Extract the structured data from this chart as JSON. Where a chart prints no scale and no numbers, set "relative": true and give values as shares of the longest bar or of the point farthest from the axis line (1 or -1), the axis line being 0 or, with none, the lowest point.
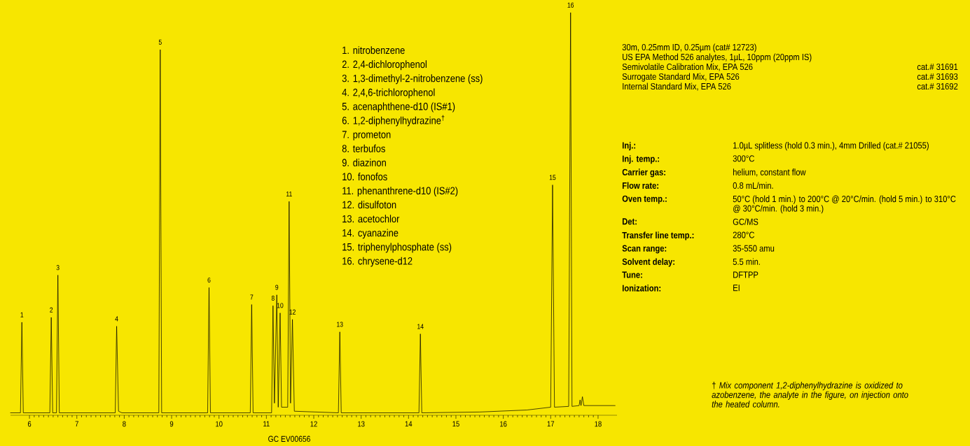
{
  "chart_data": {
    "type": "line",
    "relative": true,
    "color": "#000000",
    "xlim": [
      5.6,
      18.4
    ],
    "xticks": [
      6,
      7,
      8,
      9,
      10,
      11,
      12,
      13,
      14,
      15,
      16,
      17,
      18
    ],
    "x": [
      5.6,
      5.81,
      5.84,
      5.87,
      6.43,
      6.46,
      6.49,
      6.57,
      6.6,
      6.63,
      7.81,
      7.84,
      7.88,
      7.95,
      8.73,
      8.76,
      8.79,
      9.76,
      9.79,
      9.82,
      10.66,
      10.69,
      10.72,
      11.11,
      11.14,
      11.17,
      11.22,
      11.25,
      11.29,
      11.32,
      11.45,
      11.48,
      11.51,
      11.55,
      11.59,
      12.52,
      12.55,
      12.58,
      14.22,
      14.25,
      14.28,
      15.5,
      16.5,
      17.0,
      17.04,
      17.08,
      17.38,
      17.42,
      17.45,
      17.6,
      17.62,
      17.64,
      17.67,
      17.7,
      18.36
    ],
    "values": [
      0.006,
      0.006,
      0.231,
      0.006,
      0.006,
      0.243,
      0.006,
      0.006,
      0.348,
      0.006,
      0.006,
      0.221,
      0.01,
      0.006,
      0.006,
      0.908,
      0.006,
      0.006,
      0.317,
      0.006,
      0.006,
      0.275,
      0.006,
      0.006,
      0.272,
      0.03,
      0.299,
      0.02,
      0.254,
      0.02,
      0.02,
      0.531,
      0.03,
      0.238,
      0.01,
      0.006,
      0.207,
      0.006,
      0.006,
      0.202,
      0.006,
      0.008,
      0.013,
      0.02,
      0.572,
      0.02,
      0.022,
      1.0,
      0.022,
      0.024,
      0.038,
      0.024,
      0.046,
      0.024,
      0.024
    ],
    "annotations": [
      {
        "text": "1",
        "x": 5.84,
        "y": 0.231
      },
      {
        "text": "2",
        "x": 6.46,
        "y": 0.243
      },
      {
        "text": "3",
        "x": 6.6,
        "y": 0.348
      },
      {
        "text": "4",
        "x": 7.84,
        "y": 0.221
      },
      {
        "text": "5",
        "x": 8.76,
        "y": 0.908
      },
      {
        "text": "6",
        "x": 9.79,
        "y": 0.317
      },
      {
        "text": "7",
        "x": 10.69,
        "y": 0.275
      },
      {
        "text": "8",
        "x": 11.14,
        "y": 0.272
      },
      {
        "text": "9",
        "x": 11.22,
        "y": 0.299
      },
      {
        "text": "10",
        "x": 11.29,
        "y": 0.254
      },
      {
        "text": "11",
        "x": 11.48,
        "y": 0.531
      },
      {
        "text": "12",
        "x": 11.55,
        "y": 0.238
      },
      {
        "text": "13",
        "x": 12.55,
        "y": 0.207
      },
      {
        "text": "14",
        "x": 14.25,
        "y": 0.202
      },
      {
        "text": "15",
        "x": 17.04,
        "y": 0.572
      },
      {
        "text": "16",
        "x": 17.42,
        "y": 1.0
      },
      "1. nitrobenzene",
      "2. 2,4-dichlorophenol",
      "3. 1,3-dimethyl-2-nitrobenzene (ss)",
      "4. 2,4,6-trichlorophenol",
      "5. acenaphthene-d10 (IS#1)",
      "6. 1,2-diphenylhydrazine$^{†}$",
      "7. prometon",
      "8. terbufos",
      "9. diazinon",
      "10. fonofos",
      "11. phenanthrene-d10 (IS#2)",
      "12. disulfoton",
      "13. acetochlor",
      "14. cyanazine",
      "15. triphenylphosphate (ss)",
      "16. chrysene-d12",
      "30m, 0.25mm ID, 0.25µm (cat# 12723)",
      "US EPA Method 526 analytes, 1µL, 10ppm (20ppm IS)",
      "Semivolatile Calibration Mix, EPA 526",
      "cat.# 31691",
      "Surrogate Standard Mix, EPA 526",
      "cat.# 31693",
      "Internal Standard Mix, EPA 526",
      "cat.# 31692",
      "Inj.:",
      "1.0µL splitless (hold 0.3 min.), 4mm Drilled (cat.# 21055)",
      "Inj. temp.:",
      "300°C",
      "Carrier gas:",
      "helium, constant flow",
      "Flow rate:",
      "0.8 mL/min.",
      "Oven temp.:",
      "50°C (hold 1 min.) to 200°C @ 20°C/min. (hold 5 min.) to 310°C @ 30°C/min. (hold 3 min.)",
      "Det:",
      "GC/MS",
      "Transfer line temp.:",
      "280°C",
      "Scan range:",
      "35-550 amu",
      "Solvent delay:",
      "5.5 min.",
      "Tune:",
      "DFTPP",
      "Ionization:",
      "EI",
      "† *Mix component 1,2-diphenylhydrazine is oxidized to azobenzene, the analyte in the figure, on injection onto the heated column.*",
      "GC EV00656"
    ]
  }
}
